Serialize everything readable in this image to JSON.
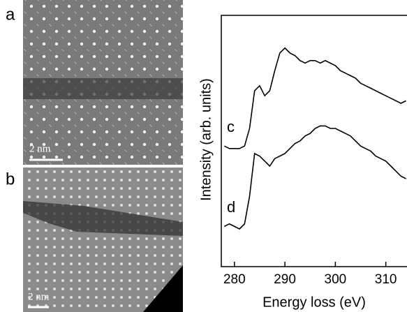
{
  "images": [
    {
      "label": "a",
      "scale_label": "2 nm"
    },
    {
      "label": "b",
      "scale_label": "2 nm"
    }
  ],
  "chart_data": {
    "type": "line",
    "xlabel": "Energy loss (eV)",
    "ylabel": "Intensity (arb. units)",
    "x": [
      278,
      279,
      280,
      281,
      282,
      283,
      284,
      285,
      286,
      287,
      288,
      289,
      290,
      291,
      292,
      293,
      294,
      295,
      296,
      297,
      298,
      299,
      300,
      301,
      302,
      303,
      304,
      305,
      306,
      307,
      308,
      309,
      310,
      311,
      312,
      313,
      314
    ],
    "series": [
      {
        "name": "c",
        "color": "#000000",
        "values": [
          48,
          47,
          47,
          47,
          48,
          55,
          70,
          72,
          68,
          70,
          78,
          85,
          87,
          85,
          84,
          82,
          81,
          82,
          82,
          81,
          82,
          81,
          80,
          78,
          77,
          76,
          75,
          73,
          72,
          71,
          70,
          69,
          68,
          67,
          66,
          65,
          66
        ]
      },
      {
        "name": "d",
        "color": "#000000",
        "values": [
          16,
          17,
          16,
          15,
          17,
          28,
          45,
          44,
          42,
          40,
          43,
          44,
          45,
          47,
          49,
          50,
          52,
          53,
          55,
          56,
          56,
          55,
          55,
          54,
          53,
          52,
          50,
          48,
          47,
          46,
          44,
          43,
          42,
          40,
          38,
          36,
          35
        ]
      }
    ],
    "xlim": [
      277.4,
      314.2
    ],
    "ylim": [
      0,
      100
    ],
    "xticks": [
      280,
      290,
      300,
      310
    ]
  }
}
